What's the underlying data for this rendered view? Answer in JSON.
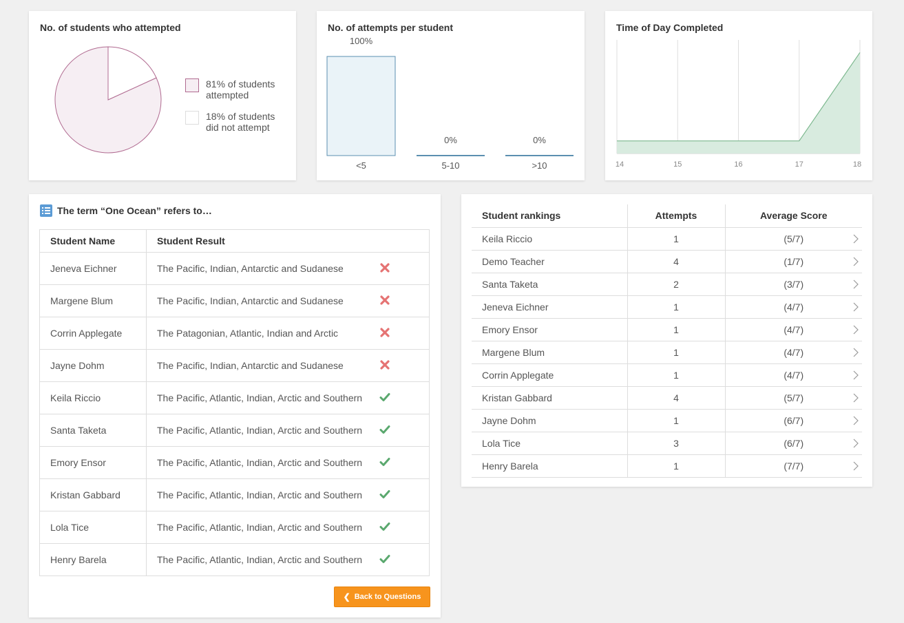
{
  "pie_card": {
    "title": "No. of students who attempted",
    "legend": [
      {
        "text": "81% of students attempted",
        "swatch_color": "#f6eef3",
        "border_color": "#b06a90"
      },
      {
        "text": "18% of students did not attempt",
        "swatch_color": "#ffffff",
        "border_color": "#dddddd"
      }
    ],
    "chart_data": {
      "type": "pie",
      "slices": [
        {
          "label": "81% of students attempted",
          "value": 81
        },
        {
          "label": "18% of students did not attempt",
          "value": 18
        }
      ]
    }
  },
  "attempts_card": {
    "title": "No. of attempts per student",
    "chart_data": {
      "type": "bar",
      "categories": [
        "<5",
        "5-10",
        ">10"
      ],
      "values": [
        100,
        0,
        0
      ],
      "labels": [
        "100%",
        "0%",
        "0%"
      ],
      "ylim": [
        0,
        100
      ]
    }
  },
  "time_card": {
    "title": "Time of Day Completed",
    "chart_data": {
      "type": "area",
      "x": [
        14,
        15,
        16,
        17,
        18
      ],
      "y": [
        1,
        1,
        1,
        1,
        8
      ],
      "xlim": [
        14,
        18
      ],
      "ylim": [
        0,
        9
      ],
      "tick_labels": [
        "14",
        "15",
        "16",
        "17",
        "18"
      ],
      "grid": true
    }
  },
  "question_card": {
    "title": "The term “One Ocean” refers to…",
    "columns": [
      "Student Name",
      "Student Result"
    ],
    "rows": [
      {
        "name": "Jeneva Eichner",
        "result": "The Pacific, Indian, Antarctic and Sudanese",
        "correct": false
      },
      {
        "name": "Margene Blum",
        "result": "The Pacific, Indian, Antarctic and Sudanese",
        "correct": false
      },
      {
        "name": "Corrin Applegate",
        "result": "The Patagonian, Atlantic, Indian and Arctic",
        "correct": false
      },
      {
        "name": "Jayne Dohm",
        "result": "The Pacific, Indian, Antarctic and Sudanese",
        "correct": false
      },
      {
        "name": "Keila Riccio",
        "result": "The Pacific, Atlantic, Indian, Arctic and Southern",
        "correct": true
      },
      {
        "name": "Santa Taketa",
        "result": "The Pacific, Atlantic, Indian, Arctic and Southern",
        "correct": true
      },
      {
        "name": "Emory Ensor",
        "result": "The Pacific, Atlantic, Indian, Arctic and Southern",
        "correct": true
      },
      {
        "name": "Kristan Gabbard",
        "result": "The Pacific, Atlantic, Indian, Arctic and Southern",
        "correct": true
      },
      {
        "name": "Lola Tice",
        "result": "The Pacific, Atlantic, Indian, Arctic and Southern",
        "correct": true
      },
      {
        "name": "Henry Barela",
        "result": "The Pacific, Atlantic, Indian, Arctic and Southern",
        "correct": true
      }
    ],
    "back_button": "Back to Questions"
  },
  "rankings_card": {
    "columns": [
      "Student rankings",
      "Attempts",
      "Average Score"
    ],
    "rows": [
      {
        "name": "Keila Riccio",
        "attempts": "1",
        "score": "(5/7)"
      },
      {
        "name": "Demo Teacher",
        "attempts": "4",
        "score": "(1/7)"
      },
      {
        "name": "Santa Taketa",
        "attempts": "2",
        "score": "(3/7)"
      },
      {
        "name": "Jeneva Eichner",
        "attempts": "1",
        "score": "(4/7)"
      },
      {
        "name": "Emory Ensor",
        "attempts": "1",
        "score": "(4/7)"
      },
      {
        "name": "Margene Blum",
        "attempts": "1",
        "score": "(4/7)"
      },
      {
        "name": "Corrin Applegate",
        "attempts": "1",
        "score": "(4/7)"
      },
      {
        "name": "Kristan Gabbard",
        "attempts": "4",
        "score": "(5/7)"
      },
      {
        "name": "Jayne Dohm",
        "attempts": "1",
        "score": "(6/7)"
      },
      {
        "name": "Lola Tice",
        "attempts": "3",
        "score": "(6/7)"
      },
      {
        "name": "Henry Barela",
        "attempts": "1",
        "score": "(7/7)"
      }
    ]
  },
  "colors": {
    "accent_button": "#f7941d",
    "correct": "#5aa86e",
    "incorrect": "#e57373",
    "bar_fill": "#eaf3f8",
    "bar_stroke": "#5b8fb0",
    "area_fill": "#d8ebdf",
    "area_stroke": "#7cb88e",
    "pie_fill": "#f6eef3",
    "pie_stroke": "#b06a90"
  }
}
